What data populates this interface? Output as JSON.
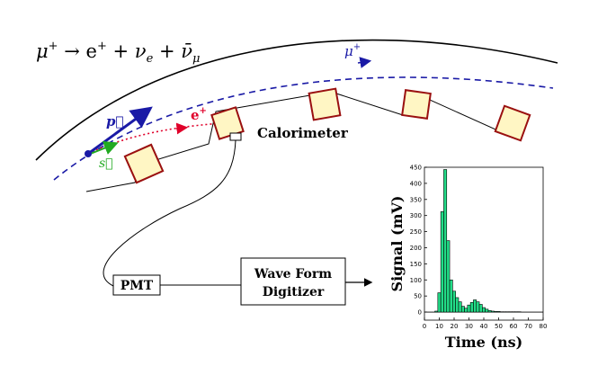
{
  "equation": {
    "prefix": "μ",
    "prefix_sup": "+",
    "arrow": " → e",
    "e_sup": "+",
    "plus1": " + ν",
    "nue_sub": "e",
    "plus2": " + ν̄",
    "num_sub": "μ"
  },
  "labels": {
    "muon_orbit": "μ",
    "muon_orbit_sup": "+",
    "momentum": "p⃗",
    "spin": "s⃗",
    "positron": "e",
    "positron_sup": "+",
    "calorimeter": "Calorimeter",
    "pmt": "PMT",
    "digitizer_line1": "Wave Form",
    "digitizer_line2": "Digitizer"
  },
  "colors": {
    "orbit": "#000000",
    "muon_path": "#1a1aa6",
    "positron_path": "#e0002a",
    "spin": "#22aa22",
    "calorimeter_fill": "#fff6c4",
    "calorimeter_border": "#9a1010",
    "histogram_fill": "#22dd88"
  },
  "chart_data": {
    "type": "bar",
    "xlabel": "Time (ns)",
    "ylabel": "Signal (mV)",
    "xlim": [
      0,
      80
    ],
    "ylim": [
      -25,
      450
    ],
    "xticks": [
      0,
      10,
      20,
      30,
      40,
      50,
      60,
      70,
      80
    ],
    "yticks": [
      0,
      50,
      100,
      150,
      200,
      250,
      300,
      350,
      400,
      450
    ],
    "bin_width": 2,
    "x": [
      8,
      10,
      12,
      14,
      16,
      18,
      20,
      22,
      24,
      26,
      28,
      30,
      32,
      34,
      36,
      38,
      40,
      42,
      44,
      46,
      48,
      50,
      52,
      54,
      56,
      58,
      60,
      62,
      64
    ],
    "values": [
      3,
      60,
      312,
      443,
      222,
      100,
      65,
      45,
      32,
      18,
      12,
      22,
      30,
      38,
      32,
      24,
      14,
      9,
      5,
      3,
      2,
      2,
      1,
      1,
      1,
      1,
      1,
      1,
      1
    ]
  }
}
